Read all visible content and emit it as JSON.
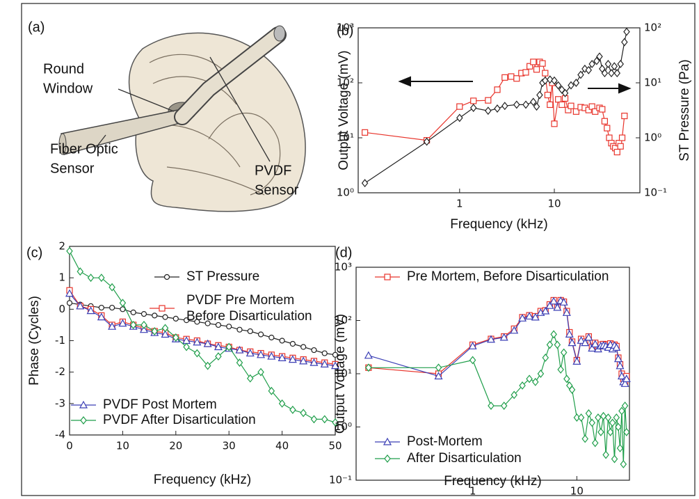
{
  "figure": {
    "panel": "(a)",
    "labels": {
      "round_window": [
        "Round",
        "Window"
      ],
      "fiber_optic_sensor": [
        "Fiber Optic",
        "Sensor"
      ],
      "pvdf_sensor": [
        "PVDF",
        "Sensor"
      ]
    }
  },
  "chart_data": [
    {
      "type": "line",
      "panel": "(b)",
      "xlabel": "Frequency (kHz)",
      "ylabel": "Output Voltage (mV)",
      "y2label": "ST Pressure (Pa)",
      "log_x": true,
      "log_y": true,
      "xlim": [
        0.085,
        80
      ],
      "ylim": [
        1,
        1000
      ],
      "y2lim": [
        0.1,
        100
      ],
      "xticks": [
        1,
        10
      ],
      "yticks": [
        {
          "value": 1,
          "label": "10⁰"
        },
        {
          "value": 10,
          "label": "10¹"
        },
        {
          "value": 100,
          "label": "10²"
        },
        {
          "value": 1000,
          "label": "10³"
        }
      ],
      "y2ticks": [
        {
          "value": 0.1,
          "label": "10⁻¹"
        },
        {
          "value": 1,
          "label": "10⁰"
        },
        {
          "value": 10,
          "label": "10¹"
        },
        {
          "value": 100,
          "label": "10²"
        }
      ],
      "series": [
        {
          "color": "#e8332a",
          "marker": "square",
          "x": [
            0.1,
            0.45,
            1,
            1.4,
            2,
            2.5,
            3,
            3.5,
            4,
            4.5,
            5,
            5.5,
            6,
            6.5,
            7,
            7.5,
            8,
            8.5,
            9,
            9.5,
            10,
            11,
            12,
            13,
            14,
            15,
            17,
            19,
            21,
            23,
            25,
            27,
            30,
            32,
            34,
            36,
            38,
            40,
            42,
            44,
            46,
            48,
            50,
            52,
            55
          ],
          "values": [
            12.5,
            9,
            37,
            47,
            48,
            75,
            125,
            130,
            120,
            150,
            155,
            200,
            240,
            175,
            240,
            225,
            150,
            60,
            40,
            100,
            18,
            50,
            40,
            52,
            32,
            38,
            30,
            36,
            35,
            32,
            37,
            30,
            35,
            33,
            20,
            15,
            10,
            8,
            7,
            6.5,
            5.5,
            8,
            7,
            10,
            25
          ]
        },
        {
          "color": "#222222",
          "marker": "diamond",
          "axis": "y2",
          "x": [
            0.1,
            0.45,
            1,
            1.4,
            2,
            2.5,
            3,
            4,
            5,
            6,
            6.5,
            7,
            7.5,
            8,
            9,
            10,
            11,
            12,
            13,
            15,
            17,
            19,
            21,
            23,
            25,
            28,
            30,
            32,
            34,
            37,
            40,
            43,
            46,
            50,
            55,
            58
          ],
          "values": [
            0.15,
            0.85,
            2.3,
            3.5,
            3.1,
            3.4,
            3.8,
            4,
            4,
            4.5,
            3.7,
            6,
            10,
            11,
            11.5,
            11,
            9,
            7.5,
            6.5,
            9,
            10,
            14,
            18,
            17,
            22,
            25,
            30,
            18,
            15,
            22,
            15,
            20,
            15,
            22,
            55,
            85
          ]
        }
      ]
    },
    {
      "type": "line",
      "panel": "(c)",
      "xlabel": "Frequency (kHz)",
      "ylabel": "Phase (Cycles)",
      "xlim": [
        0,
        50
      ],
      "ylim": [
        -4,
        2
      ],
      "xticks": [
        0,
        10,
        20,
        30,
        40,
        50
      ],
      "yticks": [
        -4,
        -3,
        -2,
        -1,
        0,
        1,
        2
      ],
      "x": [
        0,
        2,
        4,
        6,
        8,
        10,
        12,
        14,
        16,
        18,
        20,
        22,
        24,
        26,
        28,
        30,
        32,
        34,
        36,
        38,
        40,
        42,
        44,
        46,
        48,
        50
      ],
      "series": [
        {
          "name": "ST Pressure",
          "color": "#222222",
          "marker": "circle",
          "values": [
            0.2,
            0.15,
            0.1,
            0.05,
            0.05,
            0.0,
            -0.1,
            -0.15,
            -0.2,
            -0.25,
            -0.3,
            -0.35,
            -0.4,
            -0.45,
            -0.5,
            -0.55,
            -0.65,
            -0.7,
            -0.8,
            -0.9,
            -1.0,
            -1.1,
            -1.2,
            -1.3,
            -1.4,
            -1.45
          ]
        },
        {
          "name": "PVDF Pre Mortem Before Disarticulation",
          "color": "#e8332a",
          "marker": "square",
          "values": [
            0.6,
            0.1,
            0.0,
            -0.2,
            -0.5,
            -0.4,
            -0.5,
            -0.6,
            -0.7,
            -0.75,
            -0.9,
            -0.95,
            -1.0,
            -1.1,
            -1.15,
            -1.2,
            -1.3,
            -1.35,
            -1.4,
            -1.45,
            -1.5,
            -1.55,
            -1.6,
            -1.65,
            -1.7,
            -1.75
          ]
        },
        {
          "name": "PVDF Post Mortem",
          "color": "#3b3fb5",
          "marker": "triangle",
          "values": [
            0.5,
            0.1,
            -0.05,
            -0.25,
            -0.55,
            -0.45,
            -0.55,
            -0.65,
            -0.75,
            -0.8,
            -0.95,
            -1.0,
            -1.05,
            -1.1,
            -1.2,
            -1.25,
            -1.3,
            -1.4,
            -1.45,
            -1.5,
            -1.55,
            -1.6,
            -1.65,
            -1.7,
            -1.75,
            -1.8
          ]
        },
        {
          "name": "PVDF After Disarticulation",
          "color": "#1f9e4a",
          "marker": "diamond",
          "values": [
            1.85,
            1.2,
            1.0,
            1.0,
            0.7,
            0.2,
            -0.5,
            -0.5,
            -0.7,
            -0.6,
            -0.9,
            -1.2,
            -1.4,
            -1.8,
            -1.5,
            -1.2,
            -1.7,
            -2.2,
            -2.0,
            -2.6,
            -3.0,
            -3.2,
            -3.3,
            -3.5,
            -3.5,
            -3.6
          ]
        }
      ]
    },
    {
      "type": "line",
      "panel": "(d)",
      "xlabel": "Frequency (kHz)",
      "ylabel": "Output Voltage (mV)",
      "log_x": true,
      "log_y": true,
      "xlim": [
        0.076,
        32
      ],
      "ylim": [
        0.1,
        1000
      ],
      "xticks": [
        1,
        10
      ],
      "yticks": [
        {
          "value": 0.1,
          "label": "10⁻¹"
        },
        {
          "value": 1,
          "label": "10⁰"
        },
        {
          "value": 10,
          "label": "10¹"
        },
        {
          "value": 100,
          "label": "10²"
        },
        {
          "value": 1000,
          "label": "10³"
        }
      ],
      "x": [
        0.1,
        0.47,
        1,
        1.5,
        2,
        2.5,
        3,
        3.5,
        4,
        4.5,
        5,
        5.5,
        6,
        6.5,
        7,
        7.5,
        8,
        8.5,
        9,
        10,
        11,
        12,
        13,
        14,
        15,
        16,
        17,
        18,
        19,
        20,
        21,
        22,
        23,
        24,
        25,
        26,
        27,
        28,
        29,
        30
      ],
      "series": [
        {
          "name": "Pre Mortem, Before Disarticulation",
          "color": "#e8332a",
          "marker": "square",
          "values": [
            13,
            10,
            35,
            45,
            50,
            70,
            115,
            125,
            120,
            150,
            155,
            200,
            240,
            180,
            240,
            225,
            150,
            60,
            40,
            18,
            45,
            40,
            50,
            32,
            38,
            30,
            35,
            36,
            35,
            32,
            37,
            30,
            35,
            33,
            20,
            15,
            10,
            8,
            7,
            9
          ]
        },
        {
          "name": "Post-Mortem",
          "color": "#3b3fb5",
          "marker": "triangle",
          "values": [
            22,
            9,
            33,
            44,
            48,
            65,
            110,
            120,
            115,
            140,
            150,
            190,
            230,
            175,
            235,
            220,
            140,
            55,
            38,
            17,
            42,
            38,
            48,
            30,
            36,
            29,
            33,
            34,
            33,
            31,
            35,
            29,
            34,
            31,
            19,
            14,
            9,
            7,
            6.5,
            8
          ]
        },
        {
          "name": "After Disarticulation",
          "color": "#1f9e4a",
          "marker": "diamond",
          "values": [
            13,
            13,
            18,
            2.5,
            2.5,
            4,
            6,
            8,
            7,
            10,
            20,
            35,
            55,
            35,
            12,
            25,
            8,
            6,
            5,
            1.5,
            1.5,
            0.6,
            1.8,
            1.2,
            0.5,
            1.5,
            0.8,
            1.6,
            0.3,
            1.5,
            0.8,
            1.2,
            0.25,
            1.5,
            1.0,
            0.4,
            2.0,
            0.2,
            2.5,
            0.8
          ]
        }
      ]
    }
  ]
}
